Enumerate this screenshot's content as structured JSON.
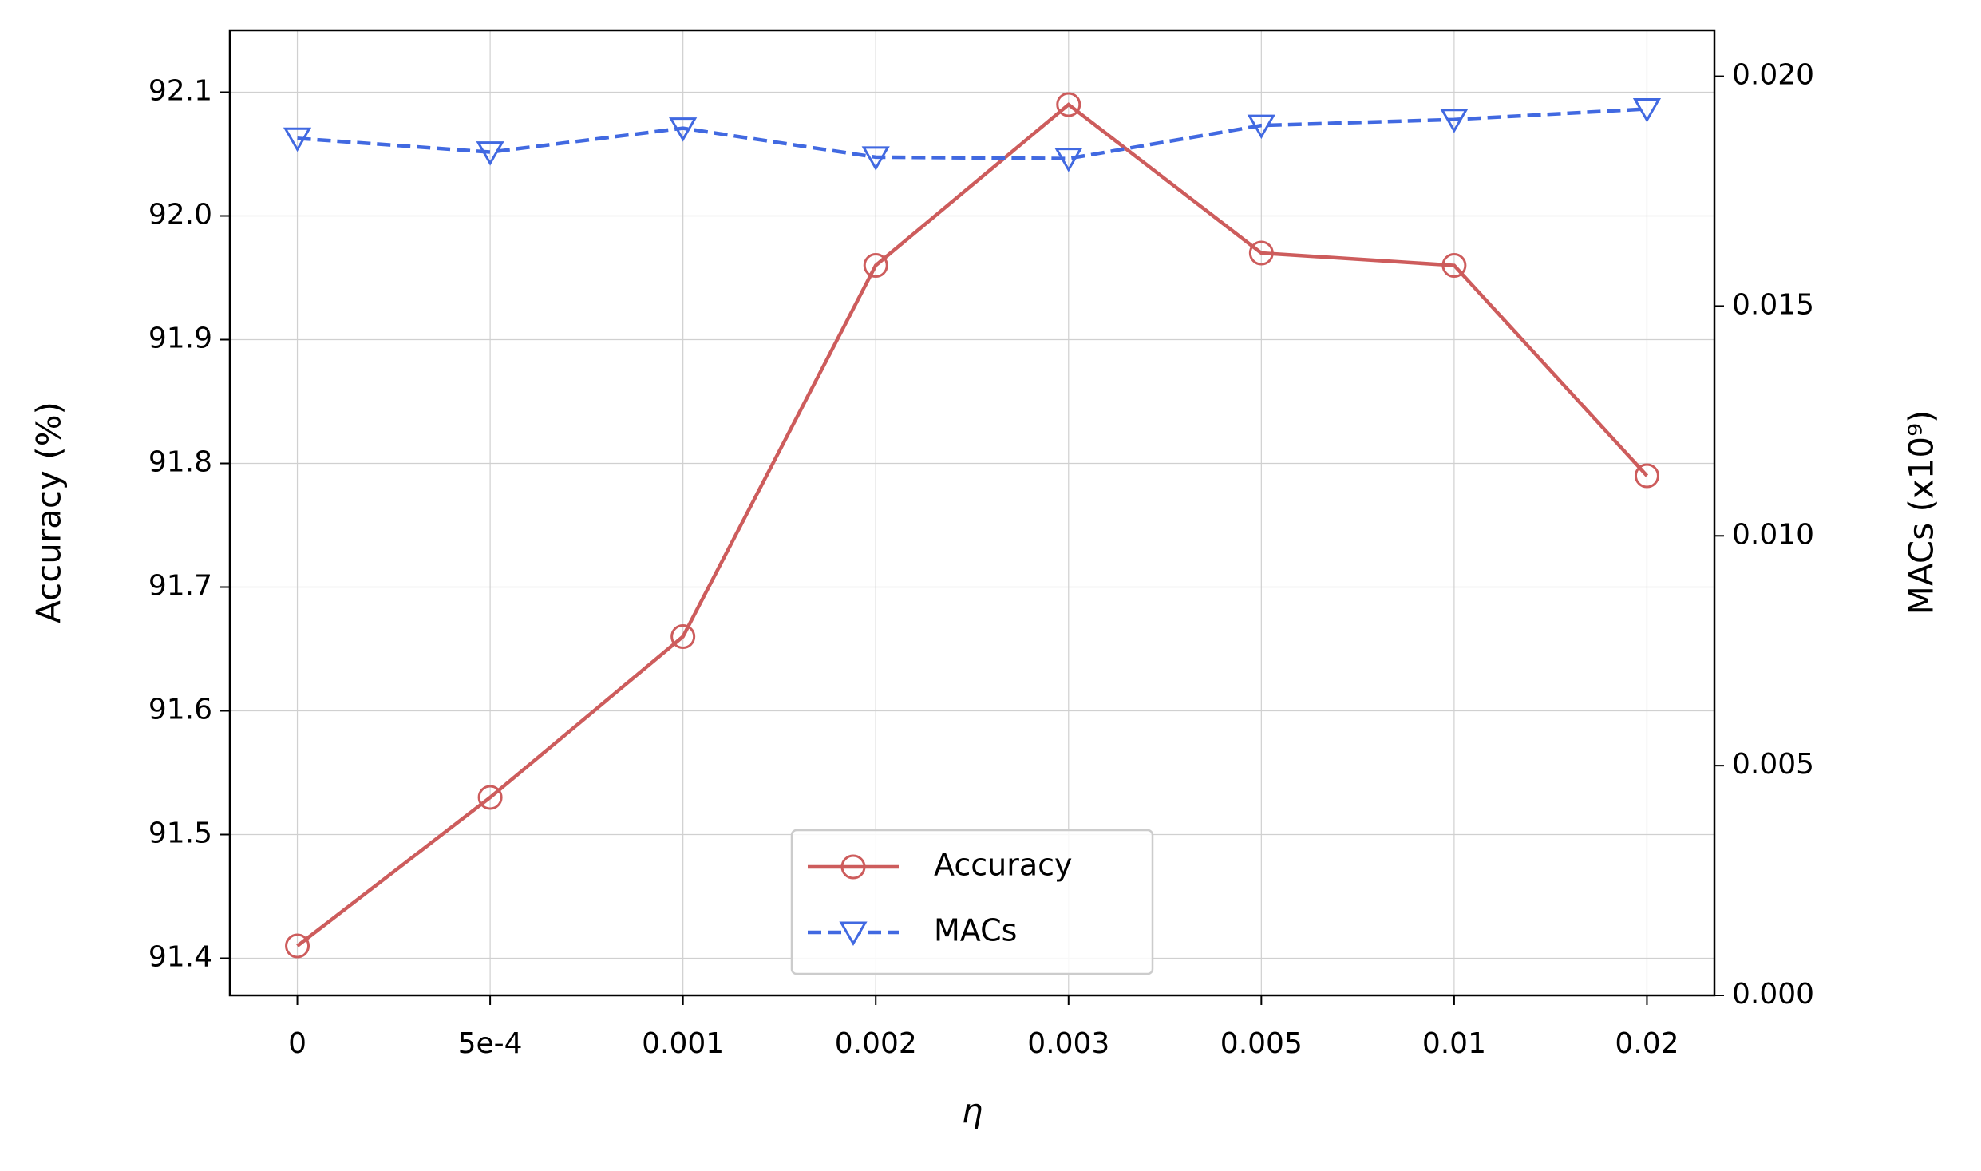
{
  "chart_data": {
    "type": "line",
    "x_label": "η",
    "y_label": "Accuracy (%)",
    "y2_label": "MACs (x10⁹)",
    "categories": [
      "0",
      "5e-4",
      "0.001",
      "0.002",
      "0.003",
      "0.005",
      "0.01",
      "0.02"
    ],
    "series": [
      {
        "name": "Accuracy",
        "color": "#cd5c5c",
        "marker": "circle",
        "linestyle": "solid",
        "values": [
          91.41,
          91.53,
          91.66,
          91.96,
          92.09,
          91.97,
          91.96,
          91.79
        ]
      },
      {
        "name": "MACs",
        "color": "#4169e1",
        "marker": "triangle-down",
        "linestyle": "dashed",
        "axis": "y2",
        "values": [
          0.01865,
          0.01835,
          0.01887,
          0.01824,
          0.01821,
          0.01893,
          0.01906,
          0.01929
        ]
      }
    ],
    "ylim": [
      91.37,
      92.15
    ],
    "yticks": [
      91.4,
      91.5,
      91.6,
      91.7,
      91.8,
      91.9,
      {
        "value": 92,
        "label": "92.0"
      },
      92.1
    ],
    "y2lim": [
      0,
      0.021
    ],
    "y2ticks": [
      {
        "value": 0,
        "label": "0.000"
      },
      0.005,
      {
        "value": 0.01,
        "label": "0.010"
      },
      0.015,
      {
        "value": 0.02,
        "label": "0.020"
      }
    ],
    "grid": true,
    "legend": "lower center"
  }
}
